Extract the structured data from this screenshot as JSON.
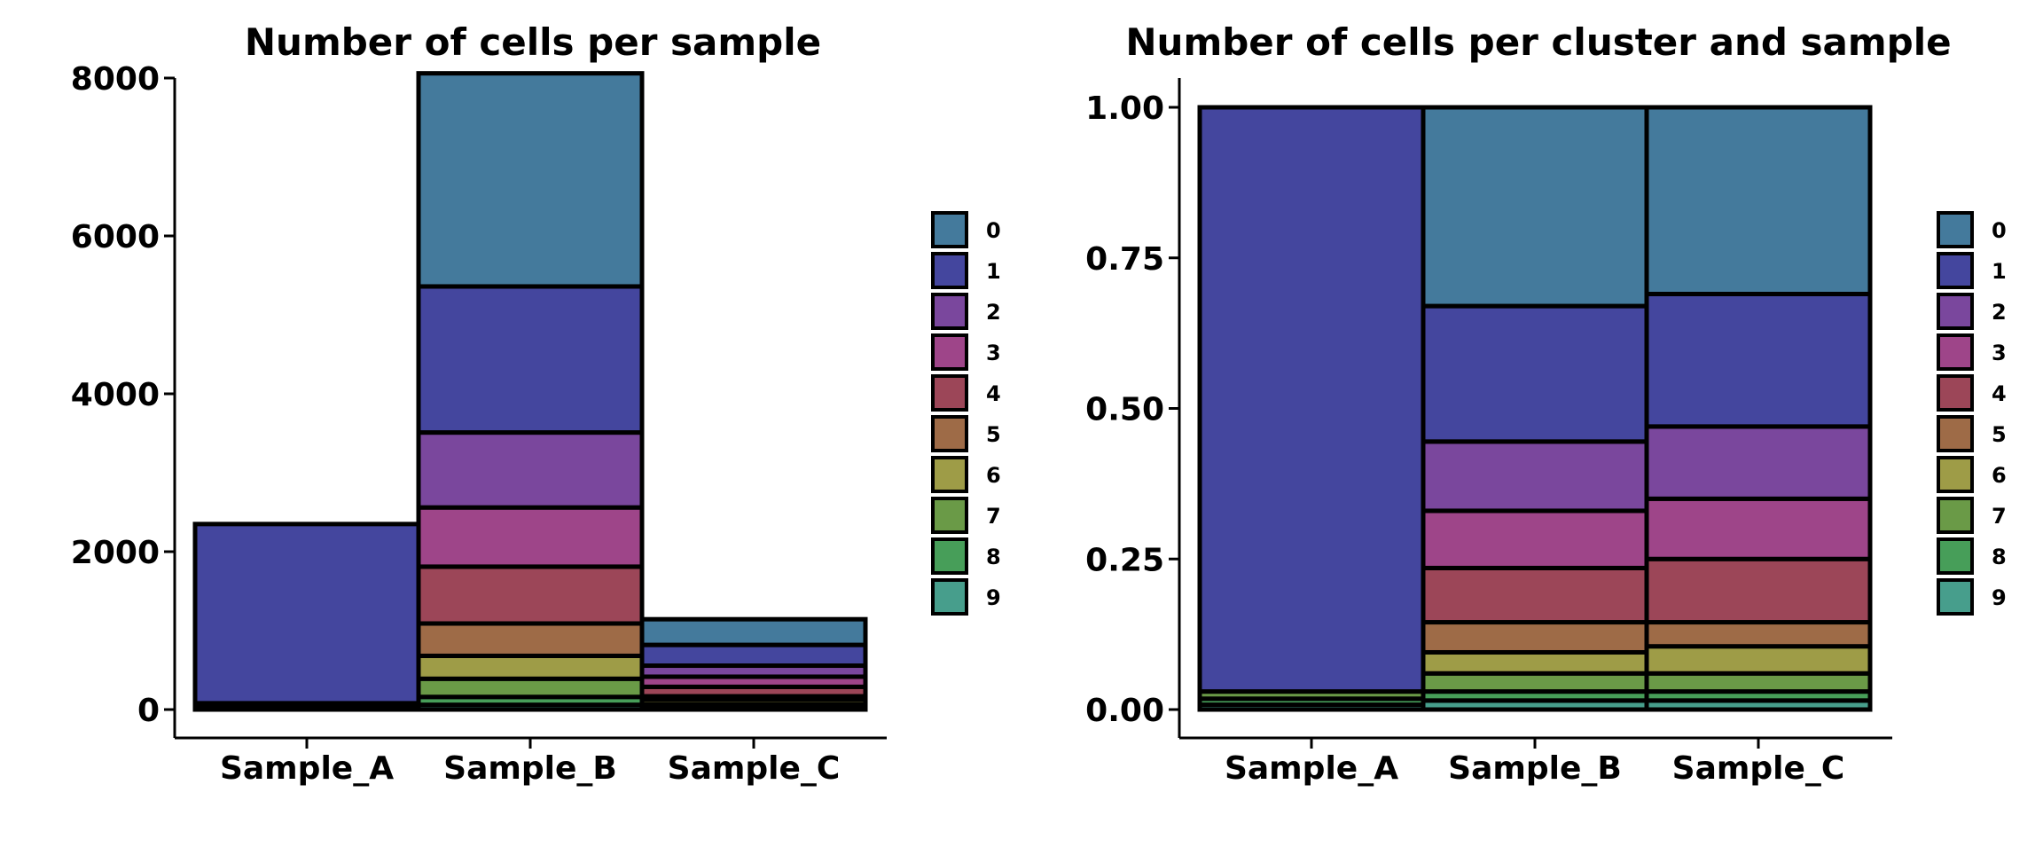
{
  "chart_data": [
    {
      "type": "bar",
      "stacked": true,
      "title": "Number of cells per sample",
      "xlabel": "",
      "ylabel": "",
      "categories": [
        "Sample_A",
        "Sample_B",
        "Sample_C"
      ],
      "ylim": [
        0,
        8000
      ],
      "yticks": [
        0,
        2000,
        4000,
        6000,
        8000
      ],
      "stack_order": [
        "9",
        "8",
        "7",
        "6",
        "5",
        "4",
        "3",
        "2",
        "1",
        "0"
      ],
      "series": [
        {
          "name": "0",
          "values": [
            0,
            2700,
            325
          ]
        },
        {
          "name": "1",
          "values": [
            2270,
            1850,
            263
          ]
        },
        {
          "name": "2",
          "values": [
            0,
            950,
            140
          ]
        },
        {
          "name": "3",
          "values": [
            0,
            750,
            128
          ]
        },
        {
          "name": "4",
          "values": [
            0,
            720,
            120
          ]
        },
        {
          "name": "5",
          "values": [
            0,
            410,
            45
          ]
        },
        {
          "name": "6",
          "values": [
            0,
            290,
            60
          ]
        },
        {
          "name": "7",
          "values": [
            30,
            230,
            40
          ]
        },
        {
          "name": "8",
          "values": [
            25,
            100,
            15
          ]
        },
        {
          "name": "9",
          "values": [
            25,
            60,
            8
          ]
        }
      ],
      "legend": "right",
      "grid": false
    },
    {
      "type": "bar",
      "stacked": true,
      "title": "Number of cells per cluster and sample",
      "xlabel": "",
      "ylabel": "",
      "categories": [
        "Sample_A",
        "Sample_B",
        "Sample_C"
      ],
      "ylim": [
        0,
        1
      ],
      "yticks": [
        "0.00",
        "0.25",
        "0.50",
        "0.75",
        "1.00"
      ],
      "stack_order": [
        "9",
        "8",
        "7",
        "6",
        "5",
        "4",
        "3",
        "2",
        "1",
        "0"
      ],
      "series": [
        {
          "name": "0",
          "values": [
            0,
            0.33,
            0.31
          ]
        },
        {
          "name": "1",
          "values": [
            0.97,
            0.225,
            0.22
          ]
        },
        {
          "name": "2",
          "values": [
            0,
            0.115,
            0.12
          ]
        },
        {
          "name": "3",
          "values": [
            0,
            0.095,
            0.1
          ]
        },
        {
          "name": "4",
          "values": [
            0,
            0.09,
            0.105
          ]
        },
        {
          "name": "5",
          "values": [
            0,
            0.05,
            0.04
          ]
        },
        {
          "name": "6",
          "values": [
            0,
            0.035,
            0.045
          ]
        },
        {
          "name": "7",
          "values": [
            0.012,
            0.03,
            0.03
          ]
        },
        {
          "name": "8",
          "values": [
            0.01,
            0.015,
            0.015
          ]
        },
        {
          "name": "9",
          "values": [
            0.008,
            0.015,
            0.015
          ]
        }
      ],
      "legend": "right",
      "grid": false
    }
  ],
  "legend": {
    "items": [
      "0",
      "1",
      "2",
      "3",
      "4",
      "5",
      "6",
      "7",
      "8",
      "9"
    ],
    "colors": {
      "0": "#447A9C",
      "1": "#44469E",
      "2": "#7A479D",
      "3": "#9E4589",
      "4": "#9C4658",
      "5": "#9E6B47",
      "6": "#9E9C47",
      "7": "#6A9A47",
      "8": "#479E59",
      "9": "#479E8C"
    }
  }
}
